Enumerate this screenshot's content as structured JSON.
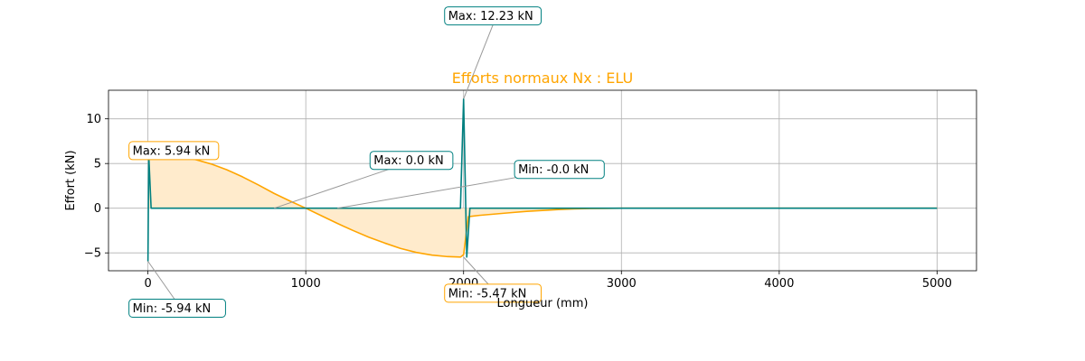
{
  "chart_data": {
    "type": "line",
    "title": "Efforts normaux Nx : ELU",
    "xlabel": "Longueur (mm)",
    "ylabel": "Effort (kN)",
    "xlim": [
      -250,
      5250
    ],
    "ylim": [
      -7,
      13.2
    ],
    "xticks": [
      0,
      1000,
      2000,
      3000,
      4000,
      5000
    ],
    "yticks": [
      -5,
      0,
      5,
      10
    ],
    "grid": true,
    "colors": {
      "title": "#ffa500",
      "orange_series": "#ffa500",
      "orange_fill": "#ffebcc",
      "teal_series": "#008080",
      "teal_box_edge": "#008080",
      "orange_box_edge": "#ffa500"
    },
    "series": [
      {
        "color": "#ffa500",
        "filled": true,
        "x": [
          0,
          100,
          200,
          300,
          400,
          500,
          600,
          700,
          800,
          900,
          1000,
          1100,
          1200,
          1300,
          1400,
          1500,
          1600,
          1700,
          1800,
          1900,
          1980,
          2000,
          2030,
          2100,
          2200,
          2300,
          2400,
          2500,
          2600,
          2700,
          2800,
          2900,
          3000,
          3500,
          4000,
          4500,
          5000
        ],
        "y": [
          5.94,
          5.9,
          5.75,
          5.45,
          4.95,
          4.3,
          3.5,
          2.6,
          1.65,
          0.8,
          0.0,
          -0.85,
          -1.7,
          -2.5,
          -3.25,
          -3.9,
          -4.5,
          -4.95,
          -5.25,
          -5.42,
          -5.47,
          -5.2,
          -0.95,
          -0.8,
          -0.65,
          -0.5,
          -0.35,
          -0.25,
          -0.15,
          -0.08,
          -0.04,
          -0.02,
          0.0,
          0.0,
          0.0,
          0.0,
          0.0
        ]
      },
      {
        "color": "#008080",
        "filled": false,
        "x": [
          0,
          5,
          20,
          1980,
          2000,
          2020,
          2040,
          5000
        ],
        "y": [
          -5.94,
          5.94,
          0.0,
          0.0,
          12.23,
          -5.47,
          0.0,
          0.0
        ]
      }
    ],
    "annotations": [
      {
        "text": "Max: 5.94 kN",
        "x": 0,
        "y": 5.94,
        "style": "orange"
      },
      {
        "text": "Min: -5.94 kN",
        "x": 0,
        "y": -5.94,
        "style": "teal"
      },
      {
        "text": "Max: 0.0 kN",
        "x": 800,
        "y": 0.0,
        "style": "teal"
      },
      {
        "text": "Min: -0.0 kN",
        "x": 1200,
        "y": 0.0,
        "style": "teal"
      },
      {
        "text": "Max: 12.23 kN",
        "x": 2000,
        "y": 12.23,
        "style": "teal"
      },
      {
        "text": "Min: -5.47 kN",
        "x": 2000,
        "y": -5.47,
        "style": "orange"
      }
    ]
  }
}
